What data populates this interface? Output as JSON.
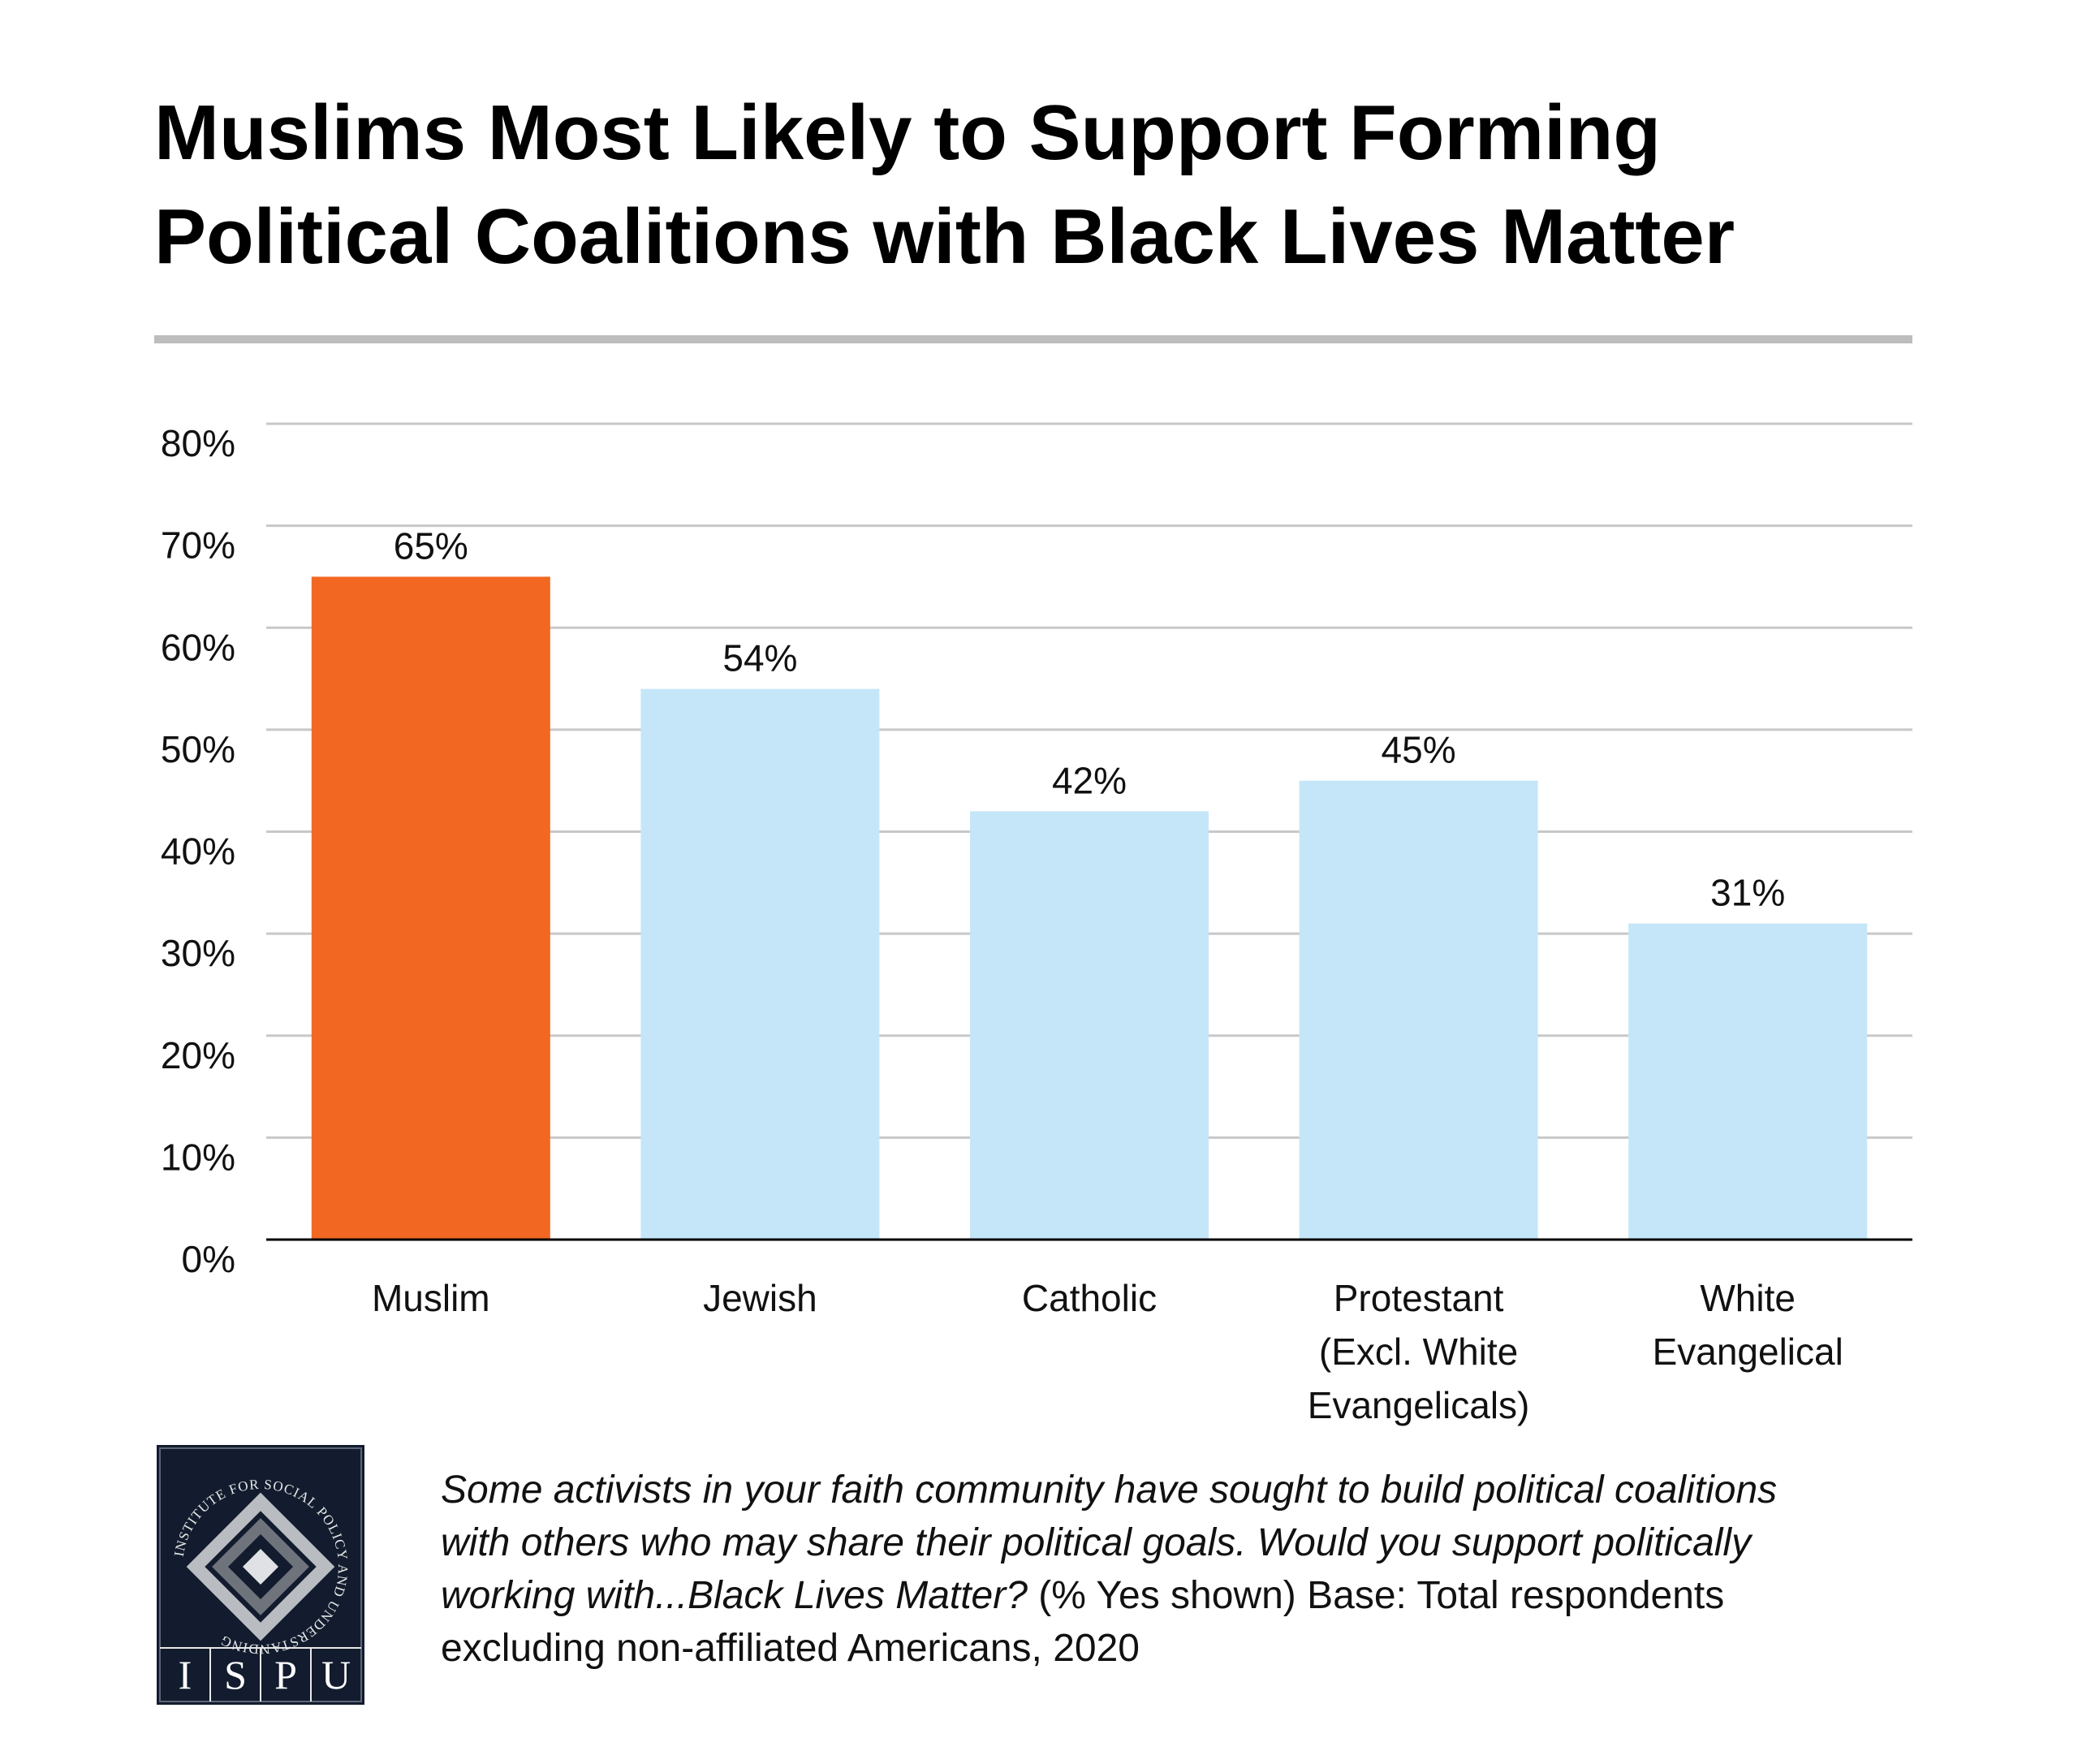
{
  "title_lines": [
    "Muslims Most Likely to Support Forming",
    "Political Coalitions with Black Lives Matter"
  ],
  "chart_data": {
    "type": "bar",
    "categories": [
      [
        "Muslim"
      ],
      [
        "Jewish"
      ],
      [
        "Catholic"
      ],
      [
        "Protestant",
        "(Excl. White",
        "Evangelicals)"
      ],
      [
        "White",
        "Evangelical"
      ]
    ],
    "values": [
      65,
      54,
      42,
      45,
      31
    ],
    "value_labels": [
      "65%",
      "54%",
      "42%",
      "45%",
      "31%"
    ],
    "yticks": [
      0,
      10,
      20,
      30,
      40,
      50,
      60,
      70,
      80
    ],
    "ytick_labels": [
      "0%",
      "10%",
      "20%",
      "30%",
      "40%",
      "50%",
      "60%",
      "70%",
      "80%"
    ],
    "ylim": [
      0,
      80
    ],
    "grid": true,
    "colors": [
      "#f26722",
      "#c5e6f8",
      "#c5e6f8",
      "#c5e6f8",
      "#c5e6f8"
    ],
    "gridline_color": "#c8c8c8"
  },
  "caption": {
    "lines": [
      {
        "italic": "Some activists in your faith community have sought to build political coalitions",
        "normal": ""
      },
      {
        "italic": "with others who may share their political goals. Would you support politically",
        "normal": ""
      },
      {
        "italic": "working with...Black Lives Matter?",
        "normal": " (% Yes shown) Base: Total respondents"
      },
      {
        "italic": "",
        "normal": "excluding non-affiliated Americans, 2020"
      }
    ]
  },
  "logo": {
    "ring_text": "INSTITUTE FOR SOCIAL POLICY AND UNDERSTANDING",
    "letters": [
      "I",
      "S",
      "P",
      "U"
    ],
    "background": "#121c2e"
  }
}
